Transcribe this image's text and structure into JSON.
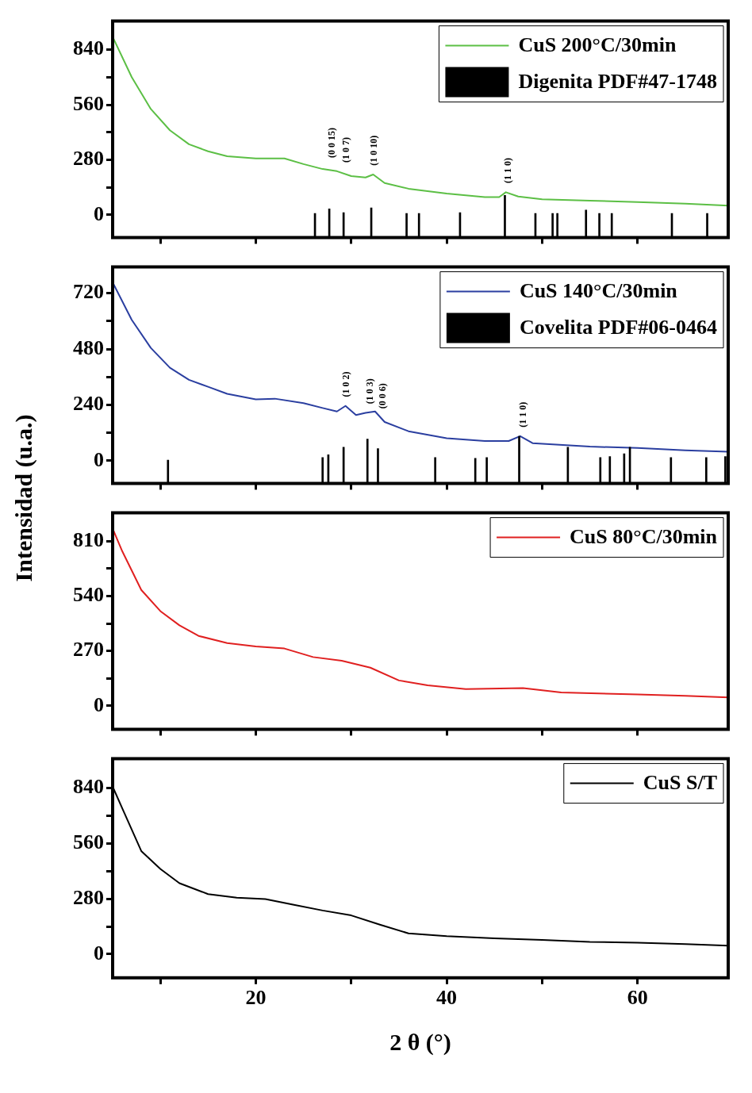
{
  "chart_data": [
    {
      "type": "line",
      "xlim": [
        5,
        69.5
      ],
      "xticks": [
        {
          "value": 10,
          "label": null
        },
        20,
        {
          "value": 30,
          "label": null
        },
        40,
        {
          "value": 50,
          "label": null
        },
        60
      ],
      "ylim": [
        -115,
        985
      ],
      "yticks": [
        0,
        {
          "value": 140,
          "label": null
        },
        280,
        {
          "value": 420,
          "label": null
        },
        560,
        {
          "value": 700,
          "label": null
        },
        840
      ],
      "tick_labels": "y",
      "legend": "top right",
      "series": [
        {
          "name": "CuS 200°C/30min",
          "color": "#5cbf45",
          "x": [
            5,
            7,
            9,
            11,
            13,
            15,
            17,
            20,
            23,
            25,
            27,
            28.5,
            30,
            31.5,
            32.3,
            33.5,
            36,
            40,
            44,
            45.5,
            46.2,
            47.5,
            50,
            55,
            60,
            65,
            69.5
          ],
          "values": [
            905,
            700,
            538,
            430,
            359,
            323,
            298,
            287,
            287,
            258,
            233,
            222,
            197,
            190,
            205,
            162,
            133,
            108,
            90,
            90,
            115,
            93,
            79,
            72,
            65,
            57,
            47
          ]
        },
        {
          "name": "Digenita PDF#47-1748",
          "type": "bar",
          "color": "#000000",
          "x": [
            26.2,
            27.7,
            29.2,
            32.1,
            35.8,
            37.1,
            41.4,
            46.1,
            49.3,
            51.1,
            51.6,
            54.6,
            56,
            57.3,
            63.6,
            67.3
          ],
          "base": [
            -115,
            -115,
            -115,
            -115,
            -115,
            -115,
            -115,
            -115,
            -115,
            -115,
            -115,
            -115,
            -115,
            -115,
            -115,
            -115
          ],
          "values": [
            122,
            145,
            126,
            150,
            122,
            122,
            126,
            214,
            122,
            122,
            122,
            139,
            122,
            122,
            122,
            122
          ]
        }
      ],
      "annotations": [
        {
          "text": "(0 0 15)",
          "x": 27.7,
          "y": 250
        },
        {
          "text": "(1 0 7)",
          "x": 29.2,
          "y": 225
        },
        {
          "text": "(1 0 10)",
          "x": 32.1,
          "y": 210
        },
        {
          "text": "(1 1 0)",
          "x": 46.1,
          "y": 120
        }
      ]
    },
    {
      "type": "line",
      "xlim": [
        5,
        69.5
      ],
      "xticks": [
        {
          "value": 10,
          "label": null
        },
        20,
        {
          "value": 30,
          "label": null
        },
        40,
        {
          "value": 50,
          "label": null
        },
        60
      ],
      "ylim": [
        -97,
        833
      ],
      "yticks": [
        0,
        {
          "value": 120,
          "label": null
        },
        240,
        {
          "value": 360,
          "label": null
        },
        480,
        {
          "value": 600,
          "label": null
        },
        720
      ],
      "tick_labels": "y",
      "legend": "top right",
      "ylabel": "Intensidad (u.a.)",
      "series": [
        {
          "name": "CuS 140°C/30min",
          "color": "#2b3fa0",
          "x": [
            5,
            7,
            9,
            11,
            13,
            15,
            17,
            20,
            22,
            25,
            27,
            28.5,
            29.4,
            30.5,
            31.5,
            32.5,
            33.5,
            36,
            40,
            44,
            46.5,
            47.7,
            49,
            55,
            60,
            65,
            69.5
          ],
          "values": [
            767,
            606,
            485,
            400,
            348,
            318,
            288,
            264,
            267,
            248,
            227,
            212,
            236,
            197,
            206,
            212,
            167,
            127,
            97,
            85,
            85,
            106,
            76,
            61,
            55,
            45,
            39
          ]
        },
        {
          "name": "Covelita PDF#06-0464",
          "type": "bar",
          "color": "#000000",
          "x": [
            10.8,
            27,
            27.6,
            29.2,
            31.7,
            32.8,
            38.8,
            43,
            44.2,
            47.6,
            52.7,
            56.1,
            57.1,
            58.6,
            59.2,
            63.5,
            67.2,
            69.2
          ],
          "base": [
            -97,
            -97,
            -97,
            -97,
            -97,
            -97,
            -97,
            -97,
            -97,
            -97,
            -97,
            -97,
            -97,
            -97,
            -97,
            -97,
            -97,
            -97
          ],
          "values": [
            100,
            111,
            123,
            155,
            190,
            149,
            111,
            108,
            111,
            202,
            155,
            111,
            115,
            127,
            155,
            111,
            111,
            115
          ]
        }
      ],
      "annotations": [
        {
          "text": "(1 0 2)",
          "x": 29.2,
          "y": 240
        },
        {
          "text": "(1 0 3)",
          "x": 31.7,
          "y": 210
        },
        {
          "text": "(0 0 6)",
          "x": 33,
          "y": 190
        },
        {
          "text": "(1 1 0)",
          "x": 47.7,
          "y": 110
        }
      ]
    },
    {
      "type": "line",
      "xlim": [
        5,
        69.5
      ],
      "xticks": [
        {
          "value": 10,
          "label": null
        },
        20,
        {
          "value": 30,
          "label": null
        },
        40,
        {
          "value": 50,
          "label": null
        },
        60
      ],
      "ylim": [
        -115,
        949
      ],
      "yticks": [
        0,
        {
          "value": 135,
          "label": null
        },
        270,
        {
          "value": 405,
          "label": null
        },
        540,
        {
          "value": 675,
          "label": null
        },
        810
      ],
      "tick_labels": "y",
      "legend": "top right",
      "series": [
        {
          "name": "CuS 80°C/30min",
          "color": "#e02020",
          "x": [
            5,
            6,
            8,
            10,
            12,
            14,
            17,
            20,
            23,
            26,
            29,
            32,
            35,
            38,
            42,
            48,
            52,
            60,
            65,
            69.5
          ],
          "values": [
            872,
            761,
            570,
            466,
            396,
            344,
            309,
            292,
            282,
            240,
            222,
            188,
            125,
            101,
            83,
            87,
            66,
            56,
            49,
            42
          ]
        }
      ]
    },
    {
      "type": "line",
      "xlim": [
        5,
        69.5
      ],
      "xticks": [
        {
          "value": 10,
          "label": null
        },
        20,
        {
          "value": 30,
          "label": null
        },
        40,
        {
          "value": 50,
          "label": null
        },
        60
      ],
      "ylim": [
        -120,
        989
      ],
      "yticks": [
        0,
        {
          "value": 140,
          "label": null
        },
        280,
        {
          "value": 420,
          "label": null
        },
        560,
        {
          "value": 700,
          "label": null
        },
        840
      ],
      "legend": "top right",
      "xlabel": "2 θ (°)",
      "series": [
        {
          "name": "CuS S/T",
          "color": "#000000",
          "x": [
            5,
            6,
            8,
            10,
            12,
            15,
            18,
            21,
            24,
            27,
            30,
            33,
            36,
            40,
            45,
            50,
            55,
            60,
            65,
            69.5
          ],
          "values": [
            848,
            739,
            522,
            431,
            359,
            304,
            286,
            279,
            250,
            221,
            196,
            149,
            105,
            91,
            80,
            72,
            62,
            58,
            51,
            43
          ]
        }
      ]
    }
  ]
}
